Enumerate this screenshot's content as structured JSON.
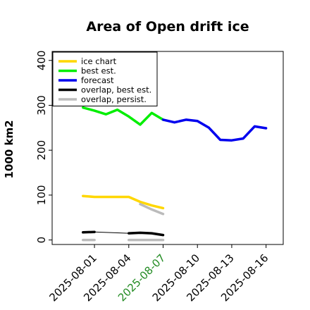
{
  "chart_data": {
    "type": "line",
    "title": "Area of Open drift ice",
    "ylabel": "1000 km2",
    "xlabel": "",
    "ylim": [
      -10,
      420
    ],
    "yticks": [
      0,
      100,
      200,
      300,
      400
    ],
    "xlim": [
      -3.7,
      16.5
    ],
    "xticks": [
      {
        "day": 0,
        "label": "2025-08-01",
        "color": "#000000"
      },
      {
        "day": 3,
        "label": "2025-08-04",
        "color": "#000000"
      },
      {
        "day": 6,
        "label": "2025-08-07",
        "color": "#228b22"
      },
      {
        "day": 9,
        "label": "2025-08-10",
        "color": "#000000"
      },
      {
        "day": 12,
        "label": "2025-08-13",
        "color": "#000000"
      },
      {
        "day": 15,
        "label": "2025-08-16",
        "color": "#000000"
      }
    ],
    "legend_position": "top-left",
    "series": [
      {
        "name": "ice chart",
        "color": "#ffd700",
        "width": 3.5,
        "points": [
          [
            -1,
            98
          ],
          [
            0,
            96
          ],
          [
            3,
            96
          ],
          [
            4,
            85
          ],
          [
            5,
            77
          ],
          [
            6,
            71
          ]
        ]
      },
      {
        "name": "best est.",
        "color": "#00ee00",
        "width": 3.5,
        "points": [
          [
            -1,
            295
          ],
          [
            0,
            288
          ],
          [
            1,
            280
          ],
          [
            2,
            290
          ],
          [
            3,
            275
          ],
          [
            4,
            257
          ],
          [
            5,
            283
          ],
          [
            6,
            268
          ]
        ]
      },
      {
        "name": "forecast",
        "color": "#0000ee",
        "width": 3.5,
        "points": [
          [
            6,
            268
          ],
          [
            7,
            262
          ],
          [
            8,
            268
          ],
          [
            9,
            265
          ],
          [
            10,
            250
          ],
          [
            11,
            223
          ],
          [
            12,
            222
          ],
          [
            13,
            226
          ],
          [
            14,
            253
          ],
          [
            15,
            249
          ]
        ]
      },
      {
        "name": "overlap, best est.",
        "color": "#000000",
        "width": 3.5,
        "segments": [
          [
            [
              -1,
              17
            ],
            [
              0,
              18
            ]
          ],
          [
            [
              3,
              15
            ],
            [
              4,
              16
            ],
            [
              5,
              15
            ],
            [
              6,
              11
            ]
          ]
        ],
        "connector": [
          [
            0,
            18
          ],
          [
            3,
            15
          ]
        ]
      },
      {
        "name": "overlap, persist.",
        "color": "#bbbbbb",
        "width": 3.5,
        "segments": [
          [
            [
              -1,
              0
            ],
            [
              0,
              0
            ]
          ],
          [
            [
              3,
              0
            ],
            [
              4,
              0
            ],
            [
              5,
              0
            ],
            [
              6,
              0
            ]
          ],
          [
            [
              4,
              80
            ],
            [
              5,
              68
            ],
            [
              6,
              58
            ]
          ]
        ]
      }
    ]
  }
}
